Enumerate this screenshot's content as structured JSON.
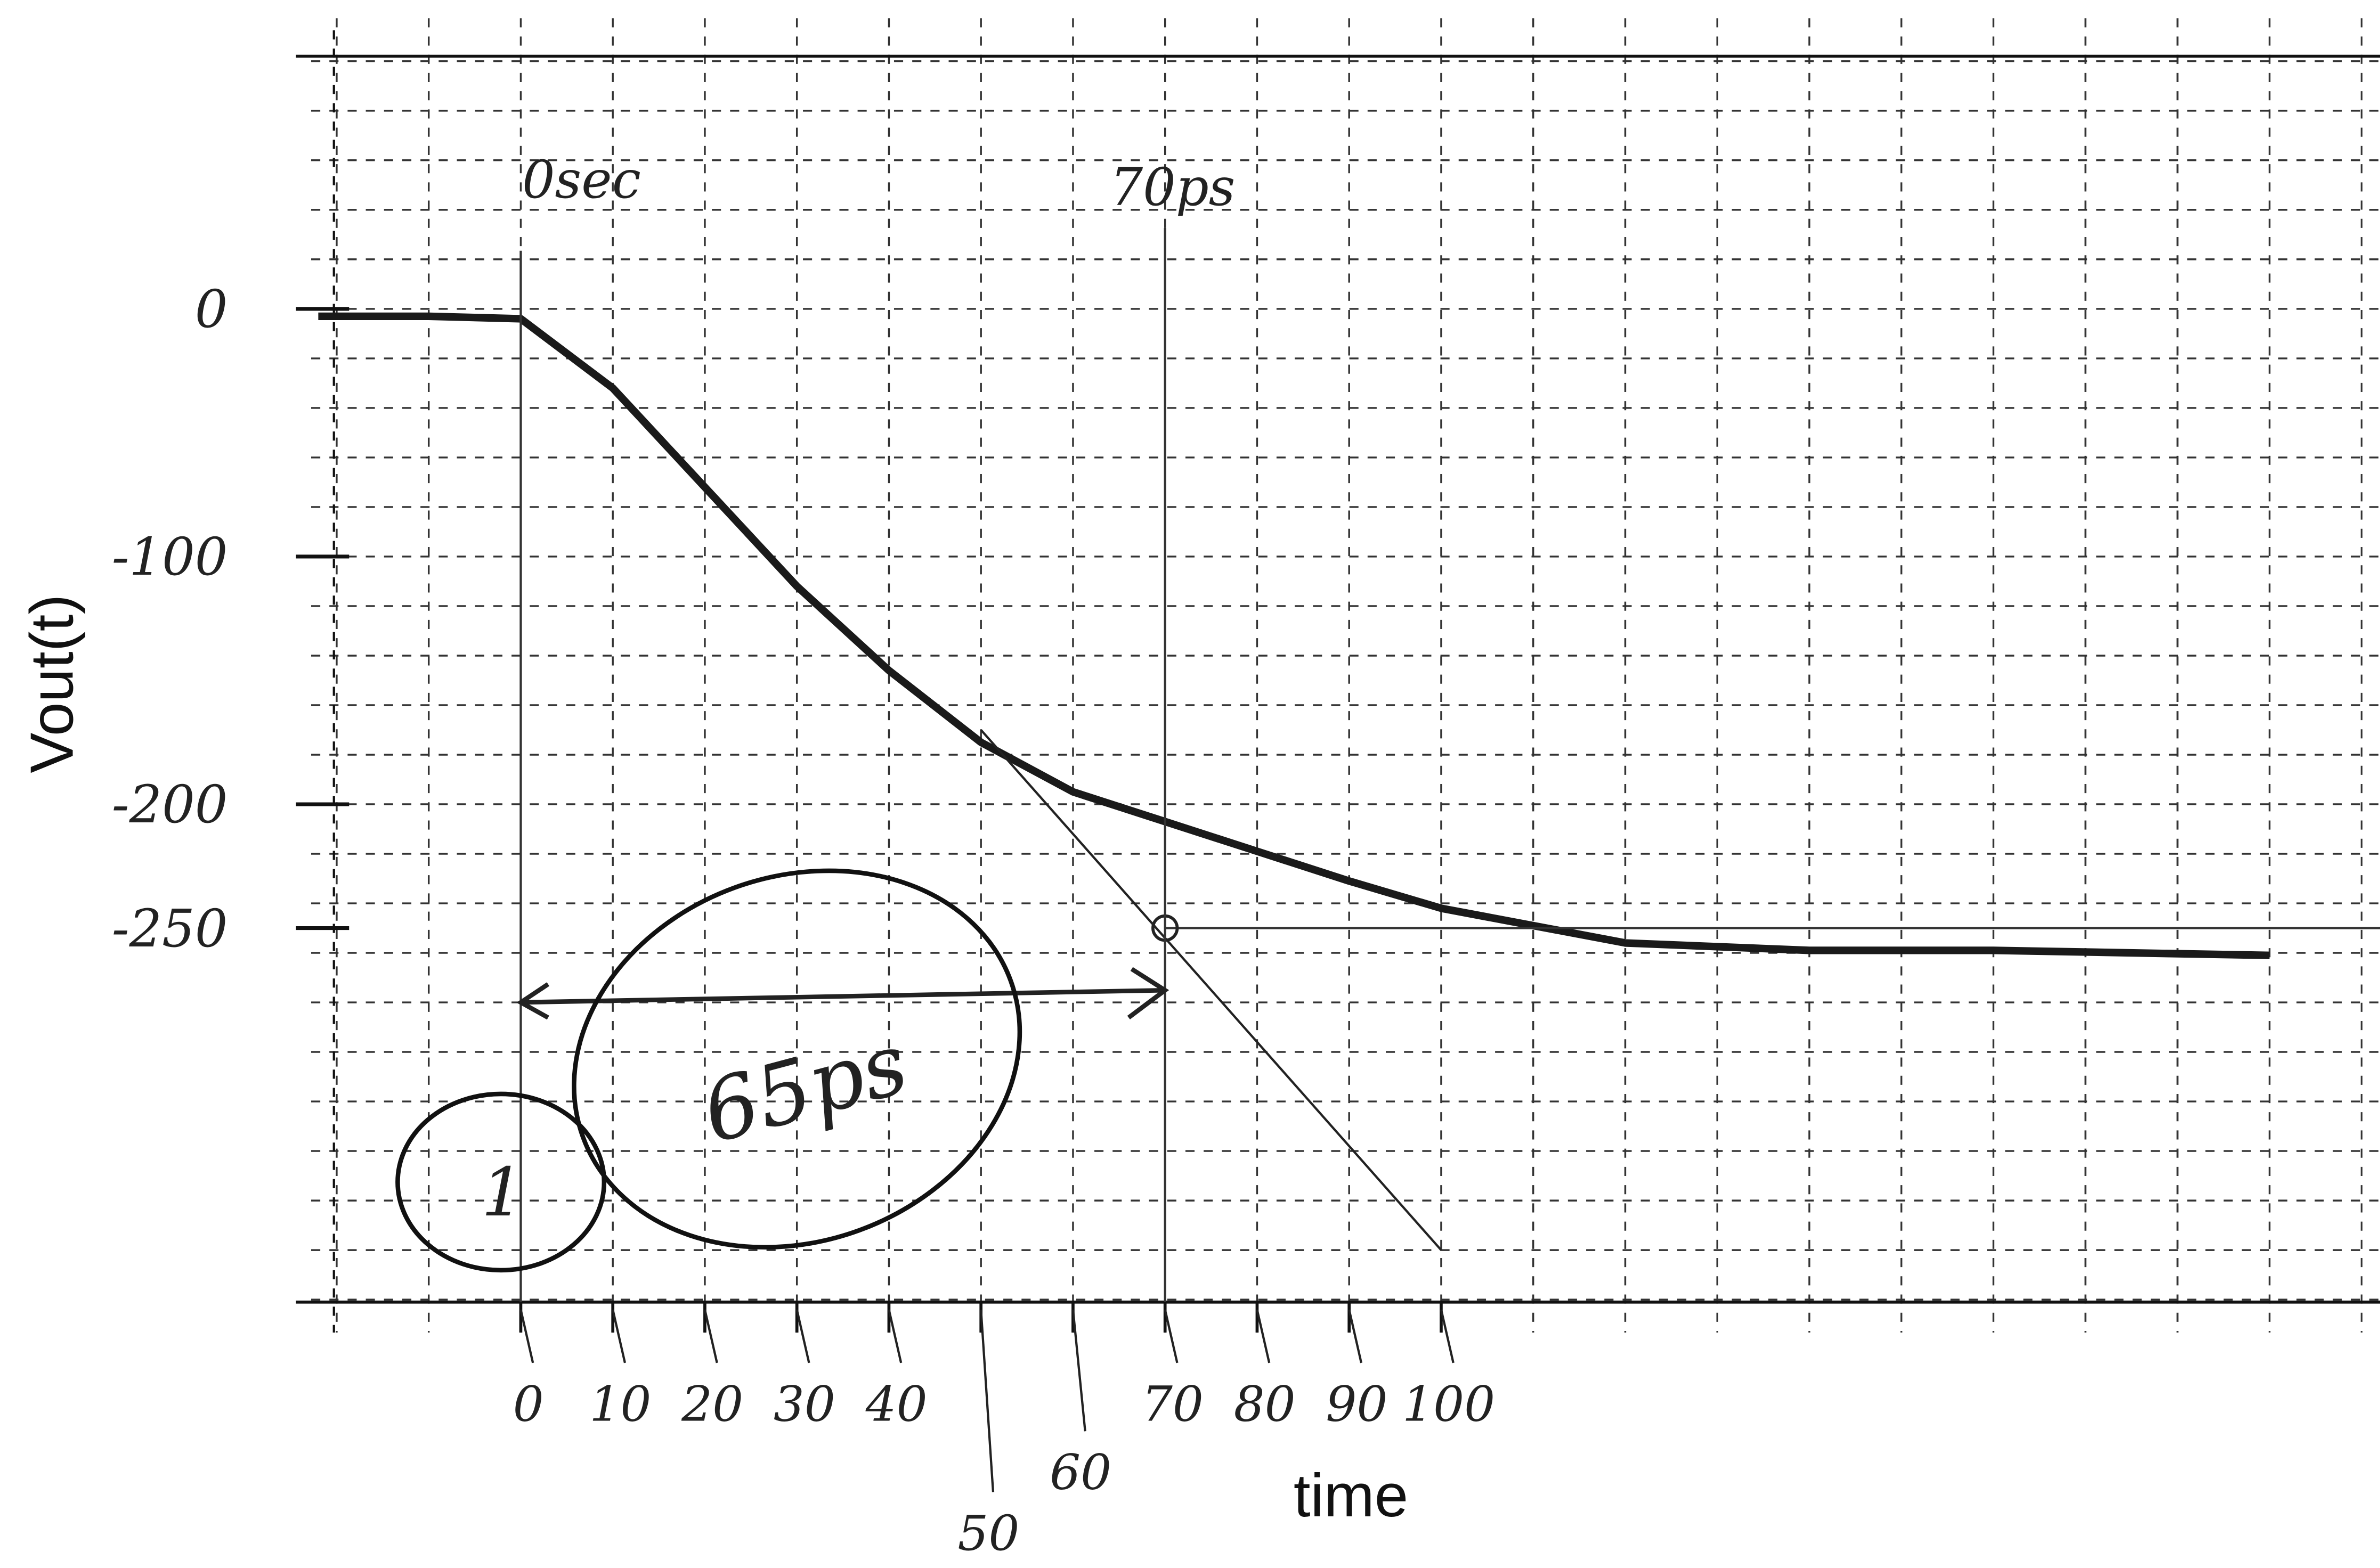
{
  "chart_data": {
    "type": "line",
    "x_label": "time",
    "y_label": "Vout(t)",
    "x": [
      -22,
      -10,
      0,
      10,
      20,
      30,
      40,
      50,
      60,
      70,
      80,
      90,
      100,
      120,
      140,
      160,
      190
    ],
    "series": [
      {
        "color": "#1a1a1a",
        "values": [
          -3,
          -3,
          -4,
          -32,
          -72,
          -112,
          -146,
          -175,
          -195,
          -207,
          -219,
          -231,
          -242,
          -256,
          -259,
          -259,
          -261
        ]
      }
    ],
    "tangent": {
      "x": [
        50,
        100
      ],
      "values": [
        -170,
        -380
      ]
    },
    "xlim": [
      -20.3,
      202
    ],
    "ylim": [
      -401,
      102
    ],
    "xticks": [
      0,
      10,
      20,
      30,
      40,
      50,
      60,
      70,
      80,
      90,
      100
    ],
    "yticks": [
      0,
      -100,
      -200,
      -250
    ],
    "grid": true,
    "annotations": [
      {
        "text": "0sec",
        "x": 0
      },
      {
        "text": "70ps",
        "x": 70
      },
      {
        "text": "65ps",
        "x": [
          0,
          70
        ],
        "y": -280
      },
      {
        "text": "1",
        "x": 0
      }
    ]
  }
}
